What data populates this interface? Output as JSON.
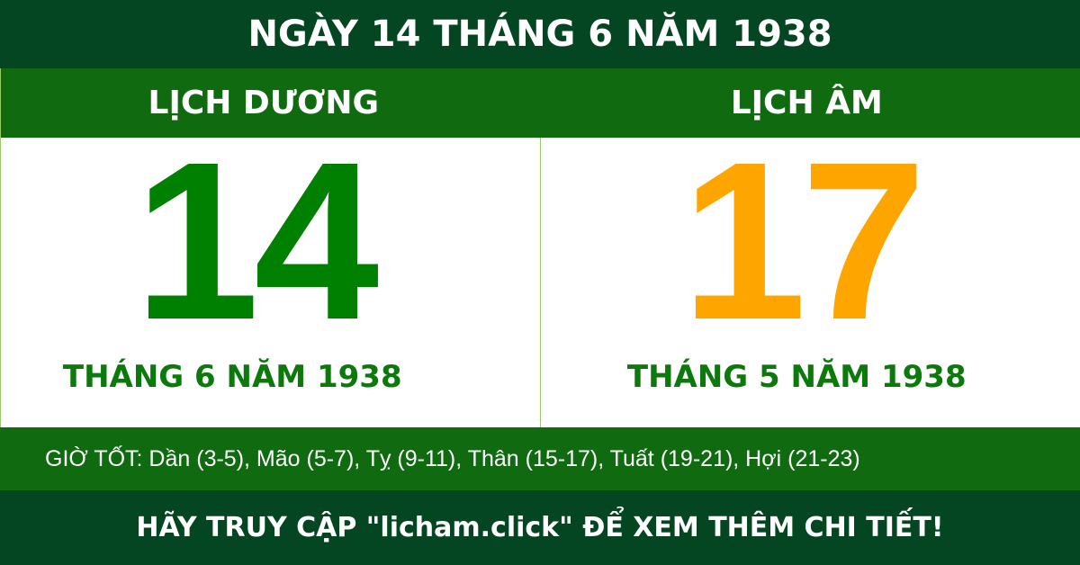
{
  "header": {
    "title": "NGÀY 14 THÁNG 6 NĂM 1938"
  },
  "solar": {
    "label": "LỊCH DƯƠNG",
    "day": "14",
    "month_year": "THÁNG 6 NĂM 1938"
  },
  "lunar": {
    "label": "LỊCH ÂM",
    "day": "17",
    "month_year": "THÁNG 5 NĂM 1938"
  },
  "good_hours": "GIỜ TỐT: Dần (3-5), Mão (5-7), Tỵ (9-11), Thân (15-17), Tuất (19-21), Hợi (21-23)",
  "footer": {
    "cta": "HÃY TRUY CẬP \"licham.click\" ĐỂ XEM THÊM CHI TIẾT!"
  },
  "colors": {
    "dark_green": "#034621",
    "band_green": "#106b10",
    "solar_day": "#008000",
    "lunar_day": "#ffa500"
  }
}
